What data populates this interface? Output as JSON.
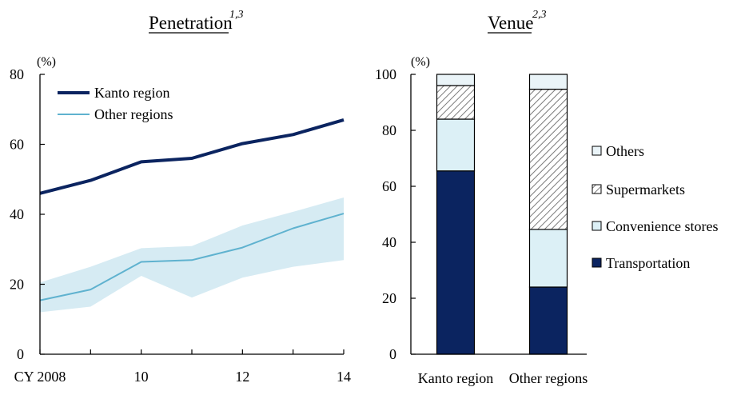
{
  "colors": {
    "kanto": "#0b2460",
    "other": "#5fb2cf",
    "band": "#d6ebf3",
    "transportation": "#0b2460",
    "convenience": "#dcf0f6",
    "supermarkets_hatch": "#7a7a7a",
    "others": "#eaf4f8",
    "axis": "#000000"
  },
  "chart_data": [
    {
      "type": "line",
      "title": "Penetration",
      "title_superscript": "1,3",
      "unit_label": "(%)",
      "x": [
        2008,
        2009,
        2010,
        2011,
        2012,
        2013,
        2014
      ],
      "x_tick_values": [
        2008,
        2010,
        2012,
        2014
      ],
      "x_tick_labels": [
        "CY 2008",
        "10",
        "12",
        "14"
      ],
      "ylim": [
        0,
        80
      ],
      "y_ticks": [
        0,
        20,
        40,
        60,
        80
      ],
      "series": [
        {
          "name": "Kanto region",
          "values": [
            46,
            49.7,
            55,
            56,
            60.2,
            62.8,
            67
          ]
        },
        {
          "name": "Other regions",
          "values": [
            15.4,
            18.5,
            26.4,
            26.9,
            30.5,
            36,
            40.2
          ]
        }
      ],
      "band": {
        "x": [
          2008,
          2009,
          2010,
          2011,
          2012,
          2013,
          2014
        ],
        "upper": [
          20.5,
          25,
          30.3,
          30.9,
          36.8,
          40.7,
          44.8
        ],
        "lower": [
          12,
          13.6,
          22.4,
          16.2,
          21.9,
          25,
          26.9
        ]
      },
      "legend_placement": "top-left"
    },
    {
      "type": "bar",
      "stacked": true,
      "title": "Venue",
      "title_superscript": "2,3",
      "unit_label": "(%)",
      "categories": [
        "Kanto region",
        "Other regions"
      ],
      "ylim": [
        0,
        100
      ],
      "y_ticks": [
        0,
        20,
        40,
        60,
        80,
        100
      ],
      "series": [
        {
          "name": "Transportation",
          "values": [
            65.5,
            24
          ]
        },
        {
          "name": "Convenience stores",
          "values": [
            18.5,
            20.6
          ]
        },
        {
          "name": "Supermarkets",
          "values": [
            12,
            50.1
          ]
        },
        {
          "name": "Others",
          "values": [
            4,
            5.3
          ]
        }
      ],
      "legend_order": [
        "Others",
        "Supermarkets",
        "Convenience stores",
        "Transportation"
      ],
      "legend_placement": "right"
    }
  ]
}
